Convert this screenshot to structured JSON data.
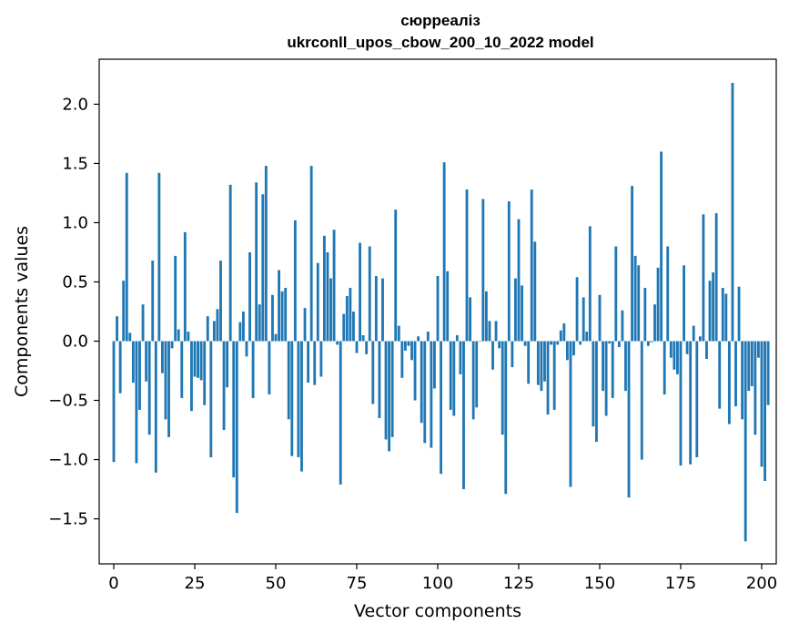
{
  "chart_data": {
    "type": "bar",
    "title": "сюрреалiз",
    "subtitle": "ukrconll_upos_cbow_200_10_2022 model",
    "xlabel": "Vector components",
    "ylabel": "Components values",
    "xlim": [
      -4.5,
      204.5
    ],
    "ylim": [
      -1.88,
      2.38
    ],
    "xticks": [
      0,
      25,
      50,
      75,
      100,
      125,
      150,
      175,
      200
    ],
    "xtick_labels": [
      "0",
      "25",
      "50",
      "75",
      "100",
      "125",
      "150",
      "175",
      "200"
    ],
    "yticks": [
      -1.5,
      -1.0,
      -0.5,
      0.0,
      0.5,
      1.0,
      1.5,
      2.0
    ],
    "ytick_labels": [
      "−1.5",
      "−1.0",
      "−0.5",
      "0.0",
      "0.5",
      "1.0",
      "1.5",
      "2.0"
    ],
    "bar_color": "#1f77b4",
    "grid": false,
    "values": [
      -1.02,
      0.21,
      -0.44,
      0.51,
      1.42,
      0.07,
      -0.35,
      -1.03,
      -0.58,
      0.31,
      -0.34,
      -0.79,
      0.68,
      -1.11,
      1.42,
      -0.27,
      -0.66,
      -0.81,
      -0.06,
      0.72,
      0.1,
      -0.48,
      0.92,
      0.08,
      -0.59,
      -0.3,
      -0.31,
      -0.33,
      -0.54,
      0.21,
      -0.98,
      0.17,
      0.27,
      0.68,
      -0.75,
      -0.39,
      1.32,
      -1.15,
      -1.45,
      0.16,
      0.25,
      -0.13,
      0.75,
      -0.48,
      1.34,
      0.31,
      1.24,
      1.48,
      -0.45,
      0.39,
      0.06,
      0.6,
      0.42,
      0.45,
      -0.66,
      -0.97,
      1.02,
      -0.98,
      -1.1,
      0.28,
      -0.35,
      1.48,
      -0.37,
      0.66,
      -0.3,
      0.89,
      0.75,
      0.53,
      0.94,
      -0.03,
      -1.21,
      0.23,
      0.38,
      0.45,
      0.25,
      -0.1,
      0.83,
      0.05,
      -0.11,
      0.8,
      -0.53,
      0.55,
      -0.65,
      0.53,
      -0.83,
      -0.93,
      -0.81,
      1.11,
      0.13,
      -0.31,
      -0.08,
      -0.04,
      -0.16,
      -0.5,
      0.04,
      -0.69,
      -0.86,
      0.08,
      -0.9,
      -0.4,
      0.55,
      -1.12,
      1.51,
      0.59,
      -0.58,
      -0.63,
      0.05,
      -0.28,
      -1.25,
      1.28,
      0.37,
      -0.66,
      -0.56,
      0.0,
      1.2,
      0.42,
      0.17,
      -0.24,
      0.17,
      -0.06,
      -0.79,
      -1.29,
      1.18,
      -0.22,
      0.53,
      1.03,
      0.47,
      -0.04,
      -0.36,
      1.28,
      0.84,
      -0.37,
      -0.42,
      -0.34,
      -0.62,
      -0.03,
      -0.58,
      -0.03,
      0.09,
      0.15,
      -0.16,
      -1.23,
      -0.12,
      0.54,
      -0.03,
      0.37,
      0.08,
      0.97,
      -0.72,
      -0.85,
      0.39,
      -0.42,
      -0.63,
      -0.02,
      -0.48,
      0.8,
      -0.05,
      0.26,
      -0.42,
      -1.32,
      1.31,
      0.72,
      0.64,
      -1.0,
      0.45,
      -0.04,
      -0.01,
      0.31,
      0.62,
      1.6,
      -0.45,
      0.8,
      -0.14,
      -0.24,
      -0.28,
      -1.05,
      0.64,
      -0.11,
      -1.04,
      0.13,
      -0.98,
      0.04,
      1.07,
      -0.15,
      0.51,
      0.58,
      1.08,
      -0.57,
      0.45,
      0.4,
      -0.7,
      2.18,
      -0.55,
      0.46,
      -0.66,
      -1.69,
      -0.42,
      -0.38,
      -0.79,
      -0.14,
      -1.06,
      -1.18,
      -0.54
    ]
  }
}
